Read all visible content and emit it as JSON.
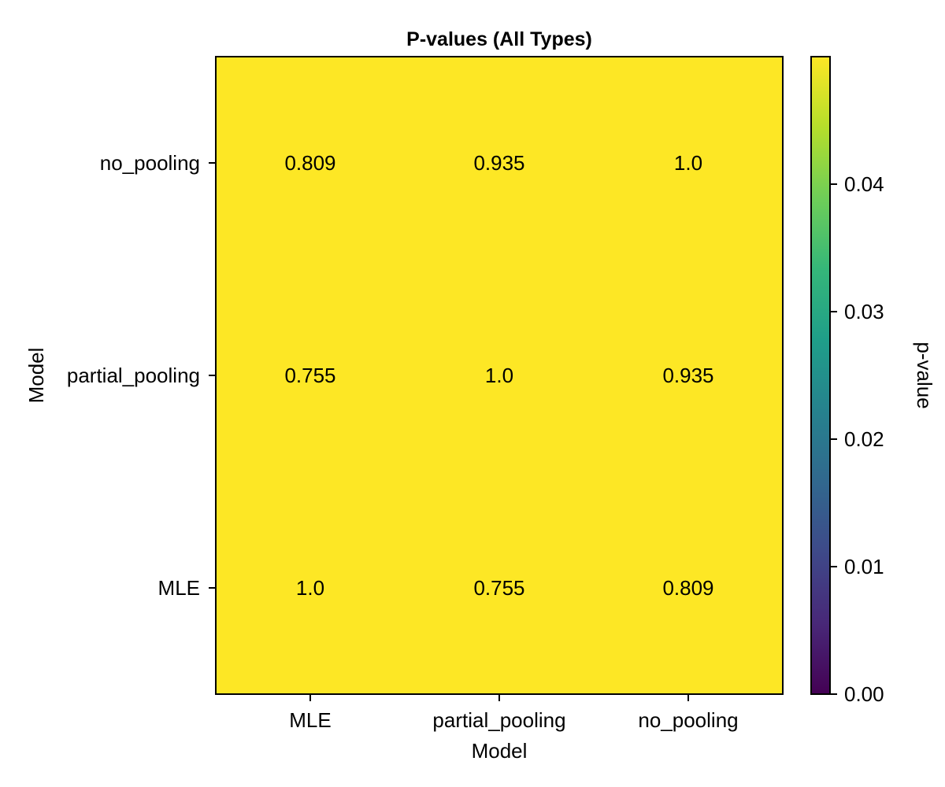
{
  "chart_data": {
    "type": "heatmap",
    "title": "P-values (All Types)",
    "xlabel": "Model",
    "ylabel": "Model",
    "x_categories": [
      "MLE",
      "partial_pooling",
      "no_pooling"
    ],
    "y_categories": [
      "MLE",
      "partial_pooling",
      "no_pooling"
    ],
    "cells": [
      {
        "x": "MLE",
        "y": "no_pooling",
        "value": 0.809,
        "label": "0.809"
      },
      {
        "x": "partial_pooling",
        "y": "no_pooling",
        "value": 0.935,
        "label": "0.935"
      },
      {
        "x": "no_pooling",
        "y": "no_pooling",
        "value": 1.0,
        "label": "1.0"
      },
      {
        "x": "MLE",
        "y": "partial_pooling",
        "value": 0.755,
        "label": "0.755"
      },
      {
        "x": "partial_pooling",
        "y": "partial_pooling",
        "value": 1.0,
        "label": "1.0"
      },
      {
        "x": "no_pooling",
        "y": "partial_pooling",
        "value": 0.935,
        "label": "0.935"
      },
      {
        "x": "MLE",
        "y": "MLE",
        "value": 1.0,
        "label": "1.0"
      },
      {
        "x": "partial_pooling",
        "y": "MLE",
        "value": 0.755,
        "label": "0.755"
      },
      {
        "x": "no_pooling",
        "y": "MLE",
        "value": 0.809,
        "label": "0.809"
      }
    ],
    "colorbar": {
      "label": "p-value",
      "range": [
        0,
        0.05
      ],
      "ticks": [
        0.0,
        0.01,
        0.02,
        0.03,
        0.04
      ],
      "tick_labels": [
        "0.00",
        "0.01",
        "0.02",
        "0.03",
        "0.04"
      ],
      "colormap": "viridis",
      "colors": [
        "#440154",
        "#482878",
        "#3e4989",
        "#31688e",
        "#26828e",
        "#1f9e89",
        "#35b779",
        "#6ece58",
        "#b5de2b",
        "#fde725"
      ]
    },
    "cell_color": "#fde725",
    "grid": false
  }
}
